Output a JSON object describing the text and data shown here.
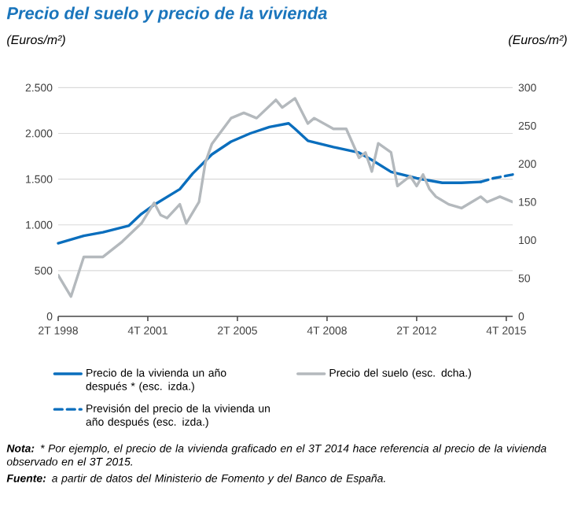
{
  "chart_data": {
    "type": "line",
    "title": "Precio del suelo y precio de la vivienda",
    "ylabel": "(Euros/m²)",
    "y2label": "(Euros/m²)",
    "xlim": [
      "1998-04",
      "2016-01"
    ],
    "ylim": [
      0,
      2500
    ],
    "y2lim": [
      0,
      300
    ],
    "xticks": [
      {
        "value": "1998-04",
        "label": "2T 1998"
      },
      {
        "value": "2001-10",
        "label": "4T 2001"
      },
      {
        "value": "2005-04",
        "label": "2T 2005"
      },
      {
        "value": "2008-10",
        "label": "4T 2008"
      },
      {
        "value": "2012-04",
        "label": "2T 2012"
      },
      {
        "value": "2015-10",
        "label": "4T 2015"
      }
    ],
    "yticks": [
      0,
      500,
      {
        "value": 1000,
        "label": "1.000"
      },
      {
        "value": 1500,
        "label": "1.500"
      },
      {
        "value": 2000,
        "label": "2.000"
      },
      {
        "value": 2500,
        "label": "2.500"
      }
    ],
    "y2ticks": [
      0,
      50,
      100,
      150,
      200,
      250,
      300
    ],
    "grid": "y",
    "legend": "bottom",
    "series": [
      {
        "name": "Precio de la vivienda un año después * (esc. izda.)",
        "color": "#0a6ebd",
        "x": [
          "1998-04",
          "1999-04",
          "2000-01",
          "2001-01",
          "2001-07",
          "2002-01",
          "2003-01",
          "2003-07",
          "2004-04",
          "2005-01",
          "2005-10",
          "2006-07",
          "2007-04",
          "2007-07",
          "2008-01",
          "2009-01",
          "2010-01",
          "2010-07",
          "2011-04",
          "2012-04",
          "2013-04",
          "2014-01",
          "2014-10"
        ],
        "values": [
          800,
          880,
          920,
          990,
          1120,
          1220,
          1390,
          1560,
          1770,
          1910,
          2000,
          2070,
          2110,
          2050,
          1920,
          1850,
          1790,
          1710,
          1580,
          1510,
          1460,
          1460,
          1470
        ]
      },
      {
        "name": "Precio del suelo (esc. dcha.)",
        "color": "#b4b9bd",
        "axis": "y2",
        "x": [
          "1998-04",
          "1998-10",
          "1999-04",
          "2000-01",
          "2000-10",
          "2001-07",
          "2002-01",
          "2002-04",
          "2002-07",
          "2003-01",
          "2003-04",
          "2003-10",
          "2004-01",
          "2004-04",
          "2005-01",
          "2005-07",
          "2006-01",
          "2006-10",
          "2007-01",
          "2007-07",
          "2008-01",
          "2008-04",
          "2009-01",
          "2009-07",
          "2010-01",
          "2010-04",
          "2010-07",
          "2010-10",
          "2011-04",
          "2011-07",
          "2012-01",
          "2012-04",
          "2012-07",
          "2012-10",
          "2013-01",
          "2013-07",
          "2014-01",
          "2014-04",
          "2014-10",
          "2015-01",
          "2015-07",
          "2016-01"
        ],
        "values": [
          54,
          26,
          78,
          78,
          98,
          122,
          149,
          133,
          129,
          147,
          122,
          150,
          202,
          226,
          260,
          267,
          260,
          284,
          274,
          286,
          253,
          260,
          246,
          246,
          208,
          215,
          190,
          227,
          215,
          171,
          184,
          171,
          186,
          167,
          157,
          147,
          142,
          147,
          157,
          150,
          157,
          150
        ]
      },
      {
        "name": "Previsión del precio de la vivienda un año después (esc. izda.)",
        "color": "#0a6ebd",
        "line_style": "dashed",
        "x": [
          "2014-10",
          "2015-04",
          "2016-01"
        ],
        "values": [
          1470,
          1510,
          1550
        ]
      }
    ],
    "annotations": [
      "**Nota:** * Por ejemplo, el precio de la vivienda graficado en el 3T 2014 hace referencia al precio de la vivienda observado en el 3T 2015.",
      "**Fuente:** a partir de datos del Ministerio de Fomento y del Banco de España."
    ]
  }
}
